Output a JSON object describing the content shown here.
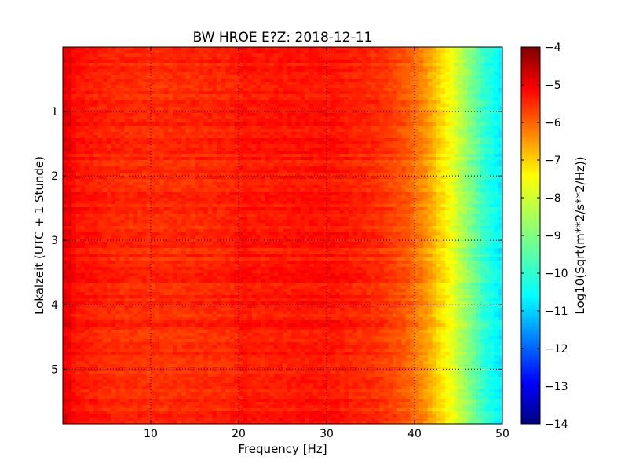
{
  "chart_data": {
    "type": "heatmap",
    "title": "BW HROE E?Z: 2018-12-11",
    "xlabel": "Frequency [Hz]",
    "ylabel": "Lokalzeit (UTC + 1 Stunde)",
    "xlim": [
      0,
      50
    ],
    "ylim": [
      5.85,
      0
    ],
    "xticks": [
      10,
      20,
      30,
      40,
      50
    ],
    "xtick_labels": [
      "10",
      "20",
      "30",
      "40",
      "50"
    ],
    "yticks": [
      1,
      2,
      3,
      4,
      5
    ],
    "ytick_labels": [
      "1",
      "2",
      "3",
      "4",
      "5"
    ],
    "grid": true,
    "colormap": "jet",
    "colorbar": {
      "label": "Log10(Sqrt(m**2/s**2/Hz))",
      "range": [
        -14,
        -4
      ],
      "ticks": [
        -4,
        -5,
        -6,
        -7,
        -8,
        -9,
        -10,
        -11,
        -12,
        -13,
        -14
      ],
      "tick_labels": [
        "−4",
        "−5",
        "−6",
        "−7",
        "−8",
        "−9",
        "−10",
        "−11",
        "−12",
        "−13",
        "−14"
      ]
    },
    "level_profile": {
      "frequency_hz": [
        0,
        0.5,
        1.5,
        5,
        10,
        19,
        20.5,
        22,
        27,
        30,
        32,
        36,
        39,
        41,
        42.5,
        44,
        45,
        46,
        47,
        48,
        49,
        50
      ],
      "log10_amplitude": [
        -5.1,
        -5.0,
        -5.4,
        -5.6,
        -5.7,
        -5.6,
        -5.4,
        -5.5,
        -5.45,
        -5.4,
        -5.5,
        -5.7,
        -6.1,
        -6.6,
        -7.2,
        -7.8,
        -8.3,
        -8.8,
        -9.3,
        -9.8,
        -10.1,
        -10.4
      ]
    },
    "variation_range": 0.35
  }
}
